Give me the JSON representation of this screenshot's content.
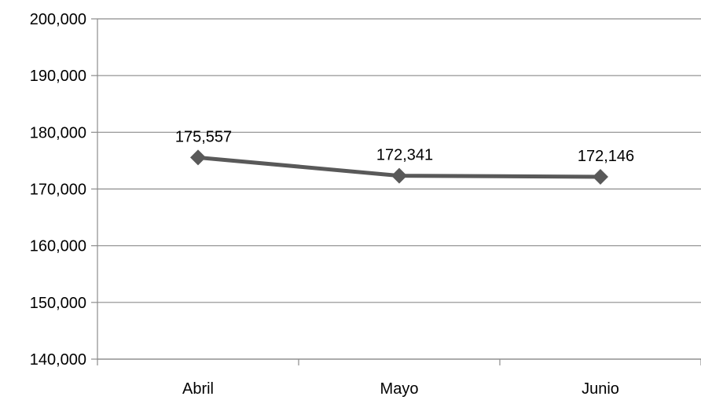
{
  "chart_data": {
    "type": "line",
    "categories": [
      "Abril",
      "Mayo",
      "Junio"
    ],
    "series": [
      {
        "values": [
          175557,
          172341,
          172146
        ],
        "labels": [
          "175,557",
          "172,341",
          "172,146"
        ],
        "color": "#595959",
        "marker": "diamond"
      }
    ],
    "ylim": [
      140000,
      200000
    ],
    "yticks": [
      140000,
      150000,
      160000,
      170000,
      180000,
      190000,
      200000
    ],
    "ytick_labels": [
      "140,000",
      "150,000",
      "160,000",
      "170,000",
      "180,000",
      "190,000",
      "200,000"
    ],
    "grid": true,
    "legend": "none",
    "title": "",
    "xlabel": "",
    "ylabel": ""
  }
}
